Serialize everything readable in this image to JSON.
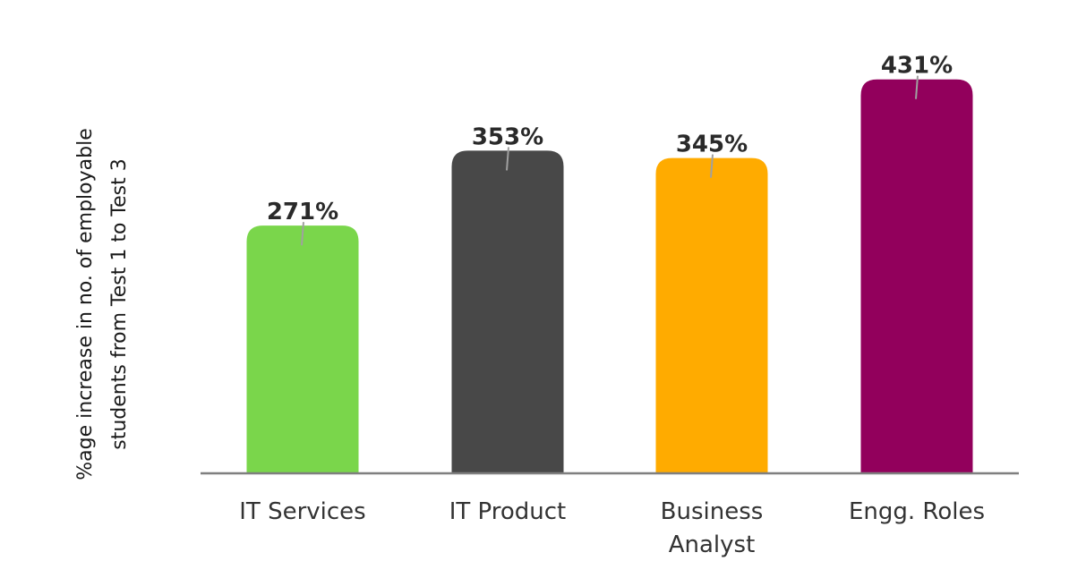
{
  "chart_data": {
    "type": "bar",
    "categories": [
      "IT Services",
      "IT Product",
      "Business Analyst",
      "Engg. Roles"
    ],
    "category_lines": [
      [
        "IT Services"
      ],
      [
        "IT Product"
      ],
      [
        "Business",
        "Analyst"
      ],
      [
        "Engg. Roles"
      ]
    ],
    "values": [
      271,
      353,
      345,
      431
    ],
    "value_labels": [
      "271%",
      "353%",
      "345%",
      "431%"
    ],
    "colors": [
      "#7AD64B",
      "#484848",
      "#FFAB00",
      "#92005C"
    ],
    "ylabel_lines": [
      "%age increase in no. of  employable",
      "students  from Test 1 to Test 3"
    ],
    "ylim": [
      0,
      465
    ],
    "grid": false,
    "legend": "none",
    "axis_color": "#7f7f7f"
  }
}
